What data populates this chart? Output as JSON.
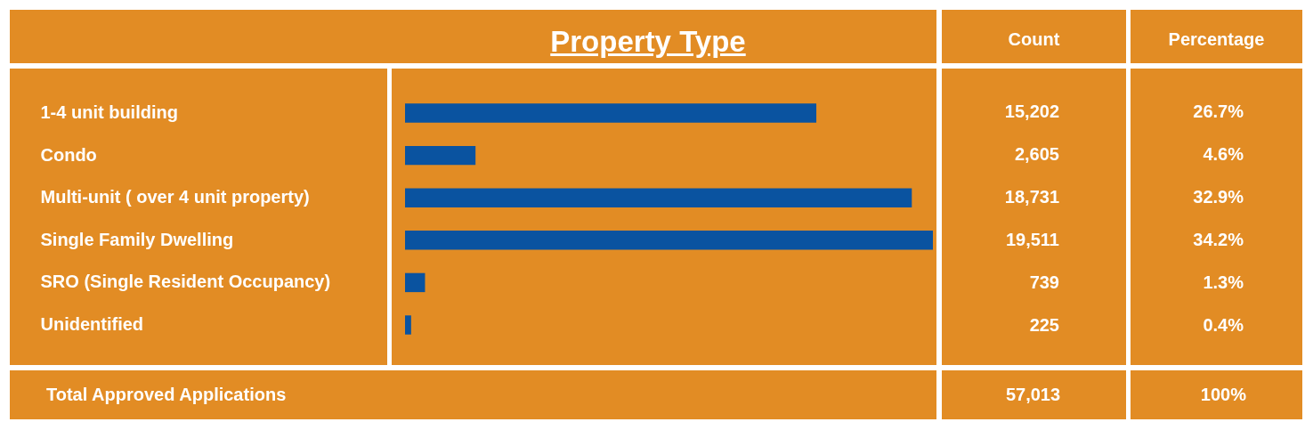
{
  "chart_data": {
    "type": "bar",
    "orientation": "horizontal",
    "title": "Property Type",
    "color": "#0a53a0",
    "categories": [
      "1-4 unit building",
      "Condo",
      "Multi-unit ( over 4 unit property)",
      "Single Family Dwelling",
      "SRO (Single Resident Occupancy)",
      "Unidentified"
    ],
    "values": [
      15202,
      2605,
      18731,
      19511,
      739,
      225
    ],
    "value_labels": [
      "15,202",
      "2,605",
      "18,731",
      "19,511",
      "739",
      "225"
    ],
    "annotations": [
      "Count",
      "Percentage",
      "26.7%",
      "4.6%",
      "32.9%",
      "34.2%",
      "1.3%",
      "0.4%",
      "Total Approved Applications",
      "57,013",
      "100%"
    ]
  }
}
